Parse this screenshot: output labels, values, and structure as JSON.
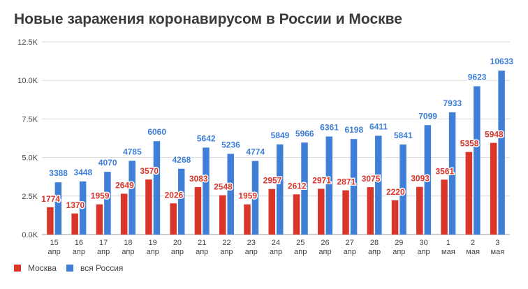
{
  "colors": {
    "moscow": "#d9352b",
    "russia": "#3f7fd8",
    "moscow_label": "#d9352b",
    "russia_label": "#3f7fd8",
    "grid": "#d9d9d9",
    "axis_text": "#444444"
  },
  "chart_data": {
    "type": "bar",
    "title": "Новые заражения коронавирусом в России и Москве",
    "xlabel": "",
    "ylabel": "",
    "ylim": [
      0,
      12500
    ],
    "yticks": [
      0,
      2500,
      5000,
      7500,
      10000,
      12500
    ],
    "ytick_labels": [
      "0.0K",
      "2.5K",
      "5.0K",
      "7.5K",
      "10.0K",
      "12.5K"
    ],
    "categories": [
      [
        "15",
        "апр"
      ],
      [
        "16",
        "апр"
      ],
      [
        "17",
        "апр"
      ],
      [
        "18",
        "апр"
      ],
      [
        "19",
        "апр"
      ],
      [
        "20",
        "апр"
      ],
      [
        "21",
        "апр"
      ],
      [
        "22",
        "апр"
      ],
      [
        "23",
        "апр"
      ],
      [
        "24",
        "апр"
      ],
      [
        "25",
        "апр"
      ],
      [
        "26",
        "апр"
      ],
      [
        "27",
        "апр"
      ],
      [
        "28",
        "апр"
      ],
      [
        "29",
        "апр"
      ],
      [
        "30",
        "апр"
      ],
      [
        "1",
        "мая"
      ],
      [
        "2",
        "мая"
      ],
      [
        "3",
        "мая"
      ]
    ],
    "series": [
      {
        "name": "Москва",
        "values": [
          1774,
          1370,
          1959,
          2649,
          3570,
          2026,
          3083,
          2548,
          1959,
          2957,
          2612,
          2971,
          2871,
          3075,
          2220,
          3093,
          3561,
          5358,
          5948
        ]
      },
      {
        "name": "вся Россия",
        "values": [
          3388,
          3448,
          4070,
          4785,
          6060,
          4268,
          5642,
          5236,
          4774,
          5849,
          5966,
          6361,
          6198,
          6411,
          5841,
          7099,
          7933,
          9623,
          10633
        ]
      }
    ],
    "legend_position": "bottom-left",
    "grid": true
  }
}
